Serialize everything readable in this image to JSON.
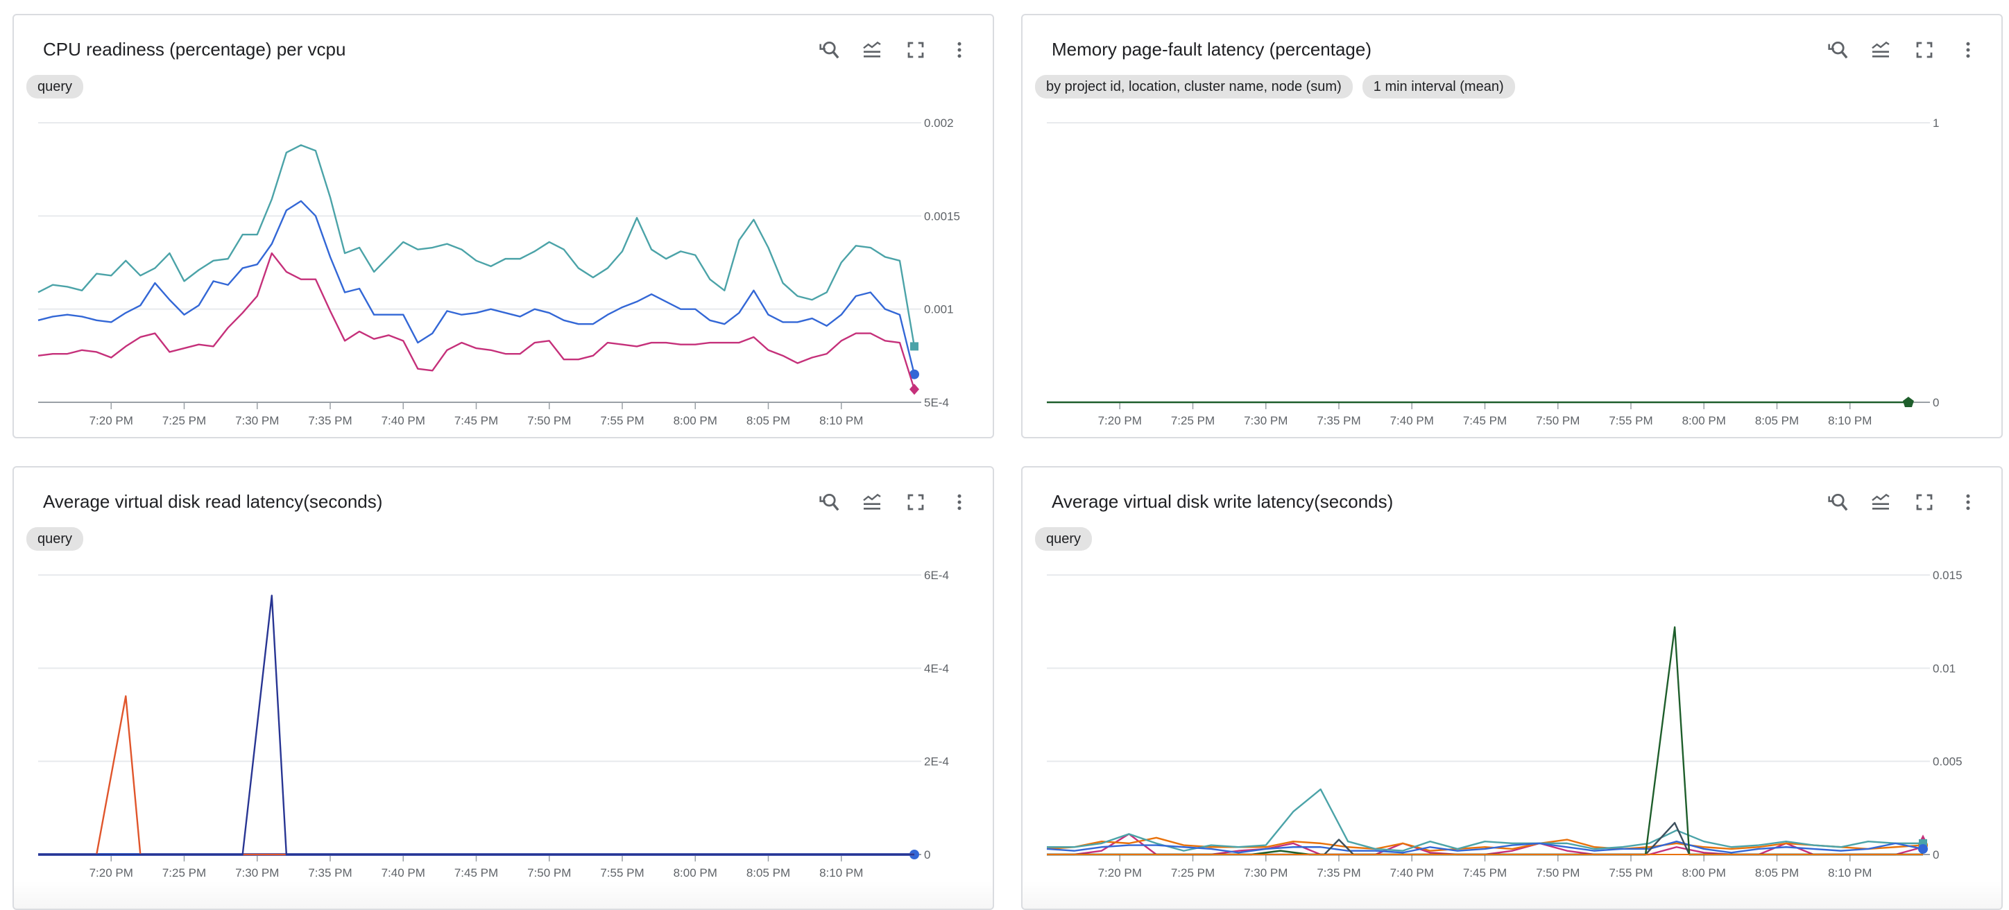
{
  "panels": [
    {
      "title": "CPU readiness (percentage) per vcpu",
      "chips": [
        "query"
      ],
      "icons": [
        "reset-zoom-icon",
        "legend-toggle-icon",
        "fullscreen-icon",
        "more-vert-icon"
      ]
    },
    {
      "title": "Memory page-fault latency (percentage)",
      "chips": [
        "by project id, location, cluster name, node (sum)",
        "1 min interval (mean)"
      ],
      "icons": [
        "reset-zoom-icon",
        "legend-toggle-icon",
        "fullscreen-icon",
        "more-vert-icon"
      ]
    },
    {
      "title": "Average virtual disk read latency(seconds)",
      "chips": [
        "query"
      ],
      "icons": [
        "reset-zoom-icon",
        "legend-toggle-icon",
        "fullscreen-icon",
        "more-vert-icon"
      ]
    },
    {
      "title": "Average virtual disk write latency(seconds)",
      "chips": [
        "query"
      ],
      "icons": [
        "reset-zoom-icon",
        "legend-toggle-icon",
        "fullscreen-icon",
        "more-vert-icon"
      ]
    }
  ],
  "chart_data": [
    {
      "type": "line",
      "title": "CPU readiness (percentage) per vcpu",
      "x_range": [
        "7:15 PM",
        "8:15 PM"
      ],
      "x_ticks": [
        "7:20 PM",
        "7:25 PM",
        "7:30 PM",
        "7:35 PM",
        "7:40 PM",
        "7:45 PM",
        "7:50 PM",
        "7:55 PM",
        "8:00 PM",
        "8:05 PM",
        "8:10 PM"
      ],
      "ylim": [
        0.0005,
        0.002
      ],
      "y_ticks": [
        {
          "v": 0.002,
          "label": "0.002"
        },
        {
          "v": 0.0015,
          "label": "0.0015"
        },
        {
          "v": 0.001,
          "label": "0.001"
        },
        {
          "v": 0.0005,
          "label": "5E-4"
        }
      ],
      "grid": true,
      "series": [
        {
          "color": "#4ba3a8",
          "marker": "square",
          "values": [
            0.00109,
            0.00113,
            0.00112,
            0.0011,
            0.00119,
            0.00118,
            0.00126,
            0.00118,
            0.00122,
            0.0013,
            0.00115,
            0.00121,
            0.00126,
            0.00127,
            0.0014,
            0.0014,
            0.00159,
            0.00184,
            0.00188,
            0.00185,
            0.0016,
            0.0013,
            0.00133,
            0.0012,
            0.00128,
            0.00136,
            0.00132,
            0.00133,
            0.00135,
            0.00132,
            0.00126,
            0.00123,
            0.00127,
            0.00127,
            0.00131,
            0.00136,
            0.00132,
            0.00122,
            0.00117,
            0.00122,
            0.00131,
            0.00149,
            0.00132,
            0.00127,
            0.00131,
            0.00129,
            0.00116,
            0.0011,
            0.00137,
            0.00148,
            0.00133,
            0.00114,
            0.00107,
            0.00105,
            0.00109,
            0.00125,
            0.00134,
            0.00133,
            0.00128,
            0.00126,
            0.0008
          ]
        },
        {
          "color": "#3367d6",
          "marker": "circle",
          "values": [
            0.00094,
            0.00096,
            0.00097,
            0.00096,
            0.00094,
            0.00093,
            0.00098,
            0.00102,
            0.00114,
            0.00105,
            0.00097,
            0.00102,
            0.00115,
            0.00113,
            0.00122,
            0.00124,
            0.00135,
            0.00153,
            0.00158,
            0.0015,
            0.00128,
            0.00109,
            0.00111,
            0.00097,
            0.00097,
            0.00097,
            0.00082,
            0.00087,
            0.00099,
            0.00097,
            0.00098,
            0.001,
            0.00098,
            0.00096,
            0.001,
            0.00098,
            0.00094,
            0.00092,
            0.00092,
            0.00097,
            0.00101,
            0.00104,
            0.00108,
            0.00104,
            0.001,
            0.001,
            0.00094,
            0.00092,
            0.00098,
            0.0011,
            0.00097,
            0.00093,
            0.00093,
            0.00095,
            0.00091,
            0.00097,
            0.00107,
            0.00109,
            0.001,
            0.00097,
            0.00065
          ]
        },
        {
          "color": "#c5307a",
          "marker": "diamond",
          "values": [
            0.00075,
            0.00076,
            0.00076,
            0.00078,
            0.00077,
            0.00074,
            0.0008,
            0.00085,
            0.00087,
            0.00077,
            0.00079,
            0.00081,
            0.0008,
            0.0009,
            0.00098,
            0.00107,
            0.0013,
            0.0012,
            0.00116,
            0.00116,
            0.00099,
            0.00083,
            0.00088,
            0.00084,
            0.00086,
            0.00083,
            0.00068,
            0.00067,
            0.00078,
            0.00082,
            0.00079,
            0.00078,
            0.00076,
            0.00076,
            0.00082,
            0.00083,
            0.00073,
            0.00073,
            0.00075,
            0.00082,
            0.00081,
            0.0008,
            0.00082,
            0.00082,
            0.00081,
            0.00081,
            0.00082,
            0.00082,
            0.00082,
            0.00085,
            0.00078,
            0.00075,
            0.00071,
            0.00074,
            0.00076,
            0.00083,
            0.00087,
            0.00087,
            0.00083,
            0.00082,
            0.00057
          ]
        }
      ]
    },
    {
      "type": "line",
      "title": "Memory page-fault latency (percentage)",
      "x_range": [
        "7:15 PM",
        "8:15 PM"
      ],
      "x_ticks": [
        "7:20 PM",
        "7:25 PM",
        "7:30 PM",
        "7:35 PM",
        "7:40 PM",
        "7:45 PM",
        "7:50 PM",
        "7:55 PM",
        "8:00 PM",
        "8:05 PM",
        "8:10 PM"
      ],
      "ylim": [
        0,
        1
      ],
      "y_ticks": [
        {
          "v": 1,
          "label": "1"
        },
        {
          "v": 0,
          "label": "0"
        }
      ],
      "grid": true,
      "series": [
        {
          "color": "#1e5e2b",
          "marker": "pentagon",
          "points": [
            [
              "7:15 PM",
              0
            ],
            [
              "8:14 PM",
              0
            ]
          ]
        }
      ]
    },
    {
      "type": "line",
      "title": "Average virtual disk read latency(seconds)",
      "x_range": [
        "7:15 PM",
        "8:15 PM"
      ],
      "x_ticks": [
        "7:20 PM",
        "7:25 PM",
        "7:30 PM",
        "7:35 PM",
        "7:40 PM",
        "7:45 PM",
        "7:50 PM",
        "7:55 PM",
        "8:00 PM",
        "8:05 PM",
        "8:10 PM"
      ],
      "ylim": [
        0,
        0.0006
      ],
      "y_ticks": [
        {
          "v": 0.0006,
          "label": "6E-4"
        },
        {
          "v": 0.0004,
          "label": "4E-4"
        },
        {
          "v": 0.0002,
          "label": "2E-4"
        },
        {
          "v": 0,
          "label": "0"
        }
      ],
      "grid": true,
      "series": [
        {
          "color": "#3367d6",
          "marker": "circle",
          "width": 4,
          "points": [
            [
              "7:15 PM",
              0
            ],
            [
              "8:15 PM",
              0
            ]
          ]
        },
        {
          "color": "#e0552b",
          "points": [
            [
              "7:15 PM",
              0
            ],
            [
              "7:19 PM",
              0
            ],
            [
              "7:21 PM",
              0.00034
            ],
            [
              "7:22 PM",
              0
            ],
            [
              "8:15 PM",
              0
            ]
          ]
        },
        {
          "color": "#283593",
          "points": [
            [
              "7:15 PM",
              0
            ],
            [
              "7:29 PM",
              0
            ],
            [
              "7:31 PM",
              0.000556
            ],
            [
              "7:32 PM",
              0
            ],
            [
              "8:15 PM",
              0
            ]
          ]
        }
      ]
    },
    {
      "type": "line",
      "title": "Average virtual disk write latency(seconds)",
      "x_range": [
        "7:15 PM",
        "8:15 PM"
      ],
      "x_ticks": [
        "7:20 PM",
        "7:25 PM",
        "7:30 PM",
        "7:35 PM",
        "7:40 PM",
        "7:45 PM",
        "7:50 PM",
        "7:55 PM",
        "8:00 PM",
        "8:05 PM",
        "8:10 PM"
      ],
      "ylim": [
        0,
        0.015
      ],
      "y_ticks": [
        {
          "v": 0.015,
          "label": "0.015"
        },
        {
          "v": 0.01,
          "label": "0.01"
        },
        {
          "v": 0.005,
          "label": "0.005"
        },
        {
          "v": 0,
          "label": "0"
        }
      ],
      "grid": true,
      "series": [
        {
          "color": "#c5307a",
          "marker": "triangle",
          "values": [
            0,
            0,
            0.0002,
            0.0011,
            0,
            0,
            0,
            0.0002,
            0.0003,
            0.0006,
            0,
            0,
            0,
            0.0006,
            0.0001,
            0,
            0,
            0.0002,
            0.0006,
            0.0002,
            0,
            0,
            0,
            0.0004,
            0.0001,
            0,
            0,
            0.0006,
            0,
            0,
            0,
            0,
            0.0004
          ]
        },
        {
          "color": "#e8710a",
          "marker": "circle",
          "values": [
            0.0003,
            0.0004,
            0.0007,
            0.0006,
            0.0009,
            0.0005,
            0.0004,
            0.0004,
            0.0004,
            0.0007,
            0.0006,
            0.0004,
            0.0003,
            0.0006,
            0.0002,
            0.0003,
            0.0004,
            0.0003,
            0.0006,
            0.0008,
            0.0004,
            0.0003,
            0.0004,
            0.0006,
            0.0004,
            0.0003,
            0.0004,
            0.0006,
            0.0005,
            0.0004,
            0.0003,
            0.0004,
            0.0005
          ]
        },
        {
          "color": "#4ba3a8",
          "marker": "square",
          "values": [
            0.0004,
            0.0004,
            0.0006,
            0.0011,
            0.0006,
            0.0002,
            0.0005,
            0.0004,
            0.0005,
            0.0023,
            0.0035,
            0.0007,
            0.0003,
            0.0002,
            0.0007,
            0.0003,
            0.0007,
            0.0006,
            0.0006,
            0.0006,
            0.0003,
            0.0004,
            0.0006,
            0.0013,
            0.0007,
            0.0004,
            0.0005,
            0.0007,
            0.0005,
            0.0004,
            0.0007,
            0.0006,
            0.0006
          ]
        },
        {
          "color": "#3367d6",
          "marker": "circle",
          "values": [
            0.0003,
            0.0002,
            0.0004,
            0.0005,
            0.0005,
            0.0004,
            0.0003,
            0.0001,
            0.0003,
            0.0004,
            0.0004,
            0.0002,
            0.0002,
            0.0001,
            0.0004,
            0.0002,
            0.0003,
            0.0005,
            0.0006,
            0.0004,
            0.0002,
            0.0003,
            0.0003,
            0.0007,
            0.0003,
            0.0001,
            0.0003,
            0.0004,
            0.0003,
            0.0002,
            0.0003,
            0.0006,
            0.0003
          ]
        },
        {
          "color": "#3c4f5c",
          "points": [
            [
              "7:15 PM",
              0
            ],
            [
              "7:34 PM",
              0
            ],
            [
              "7:35 PM",
              0.0008
            ],
            [
              "7:36 PM",
              0
            ],
            [
              "7:56 PM",
              0
            ],
            [
              "7:58 PM",
              0.0017
            ],
            [
              "7:59 PM",
              0
            ],
            [
              "8:15 PM",
              0
            ]
          ]
        },
        {
          "color": "#1e5e2b",
          "points": [
            [
              "7:15 PM",
              0
            ],
            [
              "7:29 PM",
              0
            ],
            [
              "7:31 PM",
              0.0002
            ],
            [
              "7:33 PM",
              0
            ],
            [
              "7:56 PM",
              0
            ],
            [
              "7:58 PM",
              0.0122
            ],
            [
              "7:59 PM",
              0
            ],
            [
              "8:15 PM",
              0
            ]
          ]
        },
        {
          "color": "#e8710a",
          "width": 2,
          "points": [
            [
              "7:15 PM",
              0
            ],
            [
              "8:15 PM",
              0
            ]
          ]
        }
      ]
    }
  ]
}
